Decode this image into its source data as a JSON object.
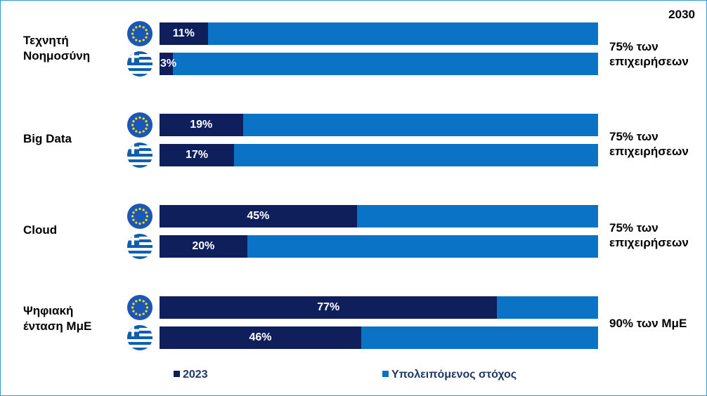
{
  "colors": {
    "year_2023": "#0f1f5c",
    "remaining": "#0a73c6",
    "border": "#2e9bd6",
    "eu_blue": "#1a57b8",
    "eu_star": "#ffdd00",
    "greek_blue": "#0d5eaf"
  },
  "header": {
    "year_label": "2030"
  },
  "legend": [
    {
      "label": "2023",
      "color": "#0f1f5c"
    },
    {
      "label": "Υπολειπόμενος στόχος",
      "color": "#0a73c6"
    }
  ],
  "chart_data": {
    "type": "bar",
    "orientation": "horizontal",
    "stacked": true,
    "xlim": [
      0,
      100
    ],
    "categories": [
      "Τεχνητή Νοημοσύνη",
      "Big Data",
      "Cloud",
      "Ψηφιακή ένταση ΜμΕ"
    ],
    "region_icons": [
      "eu-flag-icon",
      "greece-flag-icon"
    ],
    "series": [
      {
        "name": "2023",
        "eu": [
          11,
          19,
          45,
          77
        ],
        "greece": [
          3,
          17,
          20,
          46
        ]
      },
      {
        "name": "Υπολειπόμενος στόχος",
        "eu": [
          89,
          81,
          55,
          23
        ],
        "greece": [
          97,
          83,
          80,
          54
        ]
      }
    ],
    "data_labels": {
      "eu": [
        "11%",
        "19%",
        "45%",
        "77%"
      ],
      "greece": [
        "3%",
        "17%",
        "20%",
        "46%"
      ]
    },
    "targets_2030": [
      "75% των επιχειρήσεων",
      "75% των επιχειρήσεων",
      "75% των επιχειρήσεων",
      "90% των ΜμΕ"
    ],
    "grid": false,
    "legend_position": "bottom"
  }
}
